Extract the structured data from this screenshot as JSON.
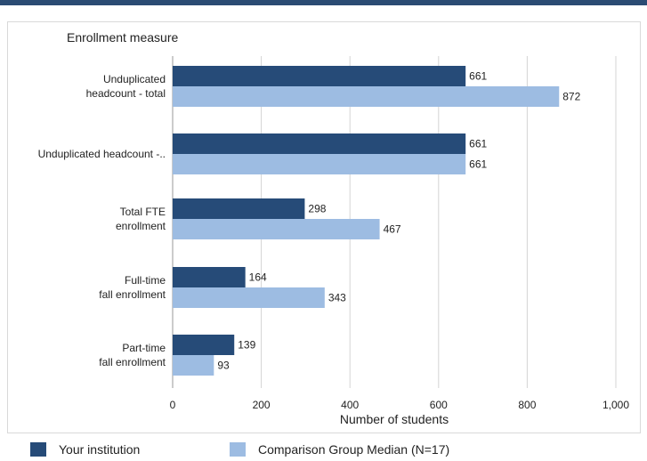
{
  "chart_data": {
    "type": "bar",
    "orientation": "horizontal",
    "category_axis_title": "Enrollment measure",
    "xlabel": "Number of students",
    "xlim": [
      0,
      1000
    ],
    "xticks": [
      0,
      200,
      400,
      600,
      800,
      1000
    ],
    "xtick_labels": [
      "0",
      "200",
      "400",
      "600",
      "800",
      "1,000"
    ],
    "grid": true,
    "legend_position": "bottom",
    "categories": [
      [
        "Unduplicated",
        "headcount - total"
      ],
      [
        "Unduplicated headcount -.."
      ],
      [
        "Total FTE",
        "enrollment"
      ],
      [
        "Full-time",
        "fall enrollment"
      ],
      [
        "Part-time",
        "fall enrollment"
      ]
    ],
    "series": [
      {
        "name": "Your institution",
        "color": "#264b78",
        "values": [
          661,
          661,
          298,
          164,
          139
        ]
      },
      {
        "name": "Comparison Group Median (N=17)",
        "color": "#9dbce2",
        "values": [
          872,
          661,
          467,
          343,
          93
        ]
      }
    ]
  },
  "colors": {
    "accent": "#2b4b73",
    "grid": "#d4d4d4",
    "axis": "#999999"
  }
}
